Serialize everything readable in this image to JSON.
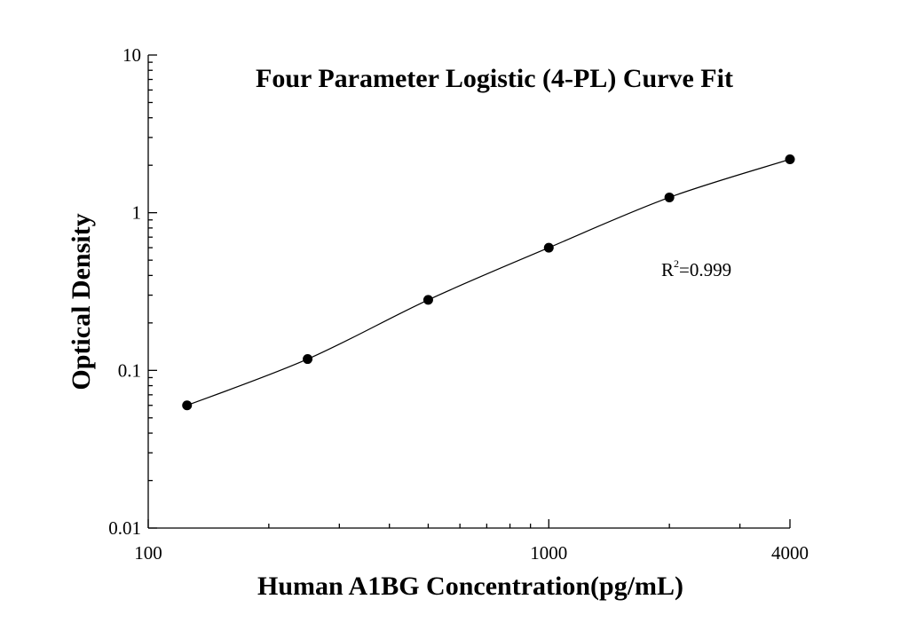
{
  "chart_data": {
    "type": "scatter",
    "title": "Four Parameter Logistic (4-PL) Curve Fit",
    "xlabel": "Human A1BG Concentration(pg/mL)",
    "ylabel": "Optical Density",
    "xscale": "log",
    "yscale": "log",
    "xlim": [
      100,
      4000
    ],
    "ylim": [
      0.01,
      10
    ],
    "xticks": [
      100,
      1000,
      4000
    ],
    "xtick_labels": [
      "100",
      "1000",
      "4000"
    ],
    "yticks": [
      0.01,
      0.1,
      1,
      10
    ],
    "ytick_labels": [
      "0.01",
      "0.1",
      "1",
      "10"
    ],
    "grid": false,
    "points": [
      {
        "x": 125,
        "y": 0.06
      },
      {
        "x": 250,
        "y": 0.118
      },
      {
        "x": 500,
        "y": 0.28
      },
      {
        "x": 1000,
        "y": 0.6
      },
      {
        "x": 2000,
        "y": 1.25
      },
      {
        "x": 4000,
        "y": 2.18
      }
    ],
    "fit": {
      "type": "4-PL",
      "r2_label": "R",
      "r2_sup": "2",
      "r2_value": "=0.999"
    }
  }
}
